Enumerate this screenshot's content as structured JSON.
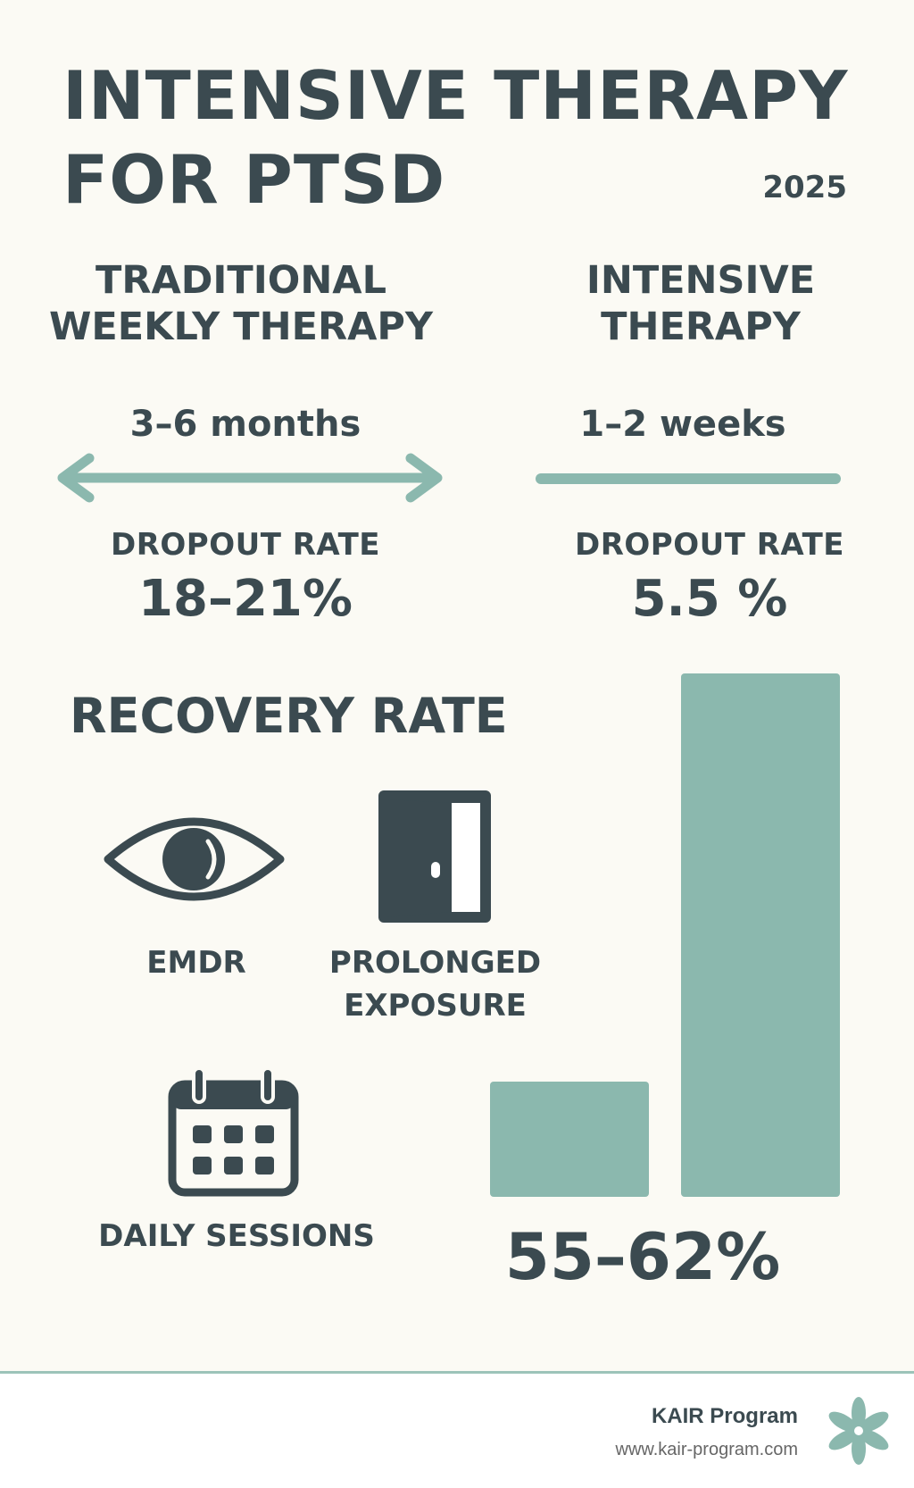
{
  "header": {
    "title_line1": "INTENSIVE THERAPY",
    "title_line2": "FOR PTSD",
    "year": "2025"
  },
  "traditional": {
    "heading_line1": "TRADITIONAL",
    "heading_line2": "WEEKLY THERAPY",
    "duration": "3–6 months",
    "dropout_label": "DROPOUT RATE",
    "dropout_value": "18–21%"
  },
  "intensive": {
    "heading_line1": "INTENSIVE",
    "heading_line2": "THERAPY",
    "duration": "1–2 weeks",
    "dropout_label": "DROPOUT RATE",
    "dropout_value": "5.5 %"
  },
  "recovery": {
    "title": "RECOVERY RATE",
    "methods": [
      {
        "label_line1": "EMDR",
        "label_line2": "",
        "icon": "eye-icon"
      },
      {
        "label_line1": "PROLONGED",
        "label_line2": "EXPOSURE",
        "icon": "door-icon"
      },
      {
        "label_line1": "DAILY SESSIONS",
        "label_line2": "",
        "icon": "calendar-icon"
      }
    ],
    "value": "55–62%"
  },
  "chart_data": {
    "type": "bar",
    "categories": [
      "",
      ""
    ],
    "values": [
      0.22,
      1.0
    ],
    "colors": [
      "#8bb8ae",
      "#8bb8ae"
    ]
  },
  "footer": {
    "brand": "KAIR Program",
    "url": "www.kair-program.com",
    "logo_icon": "flower-logo-icon"
  },
  "colors": {
    "text": "#3b4a50",
    "accent": "#8bb8ae",
    "background": "#fbfaf4"
  }
}
